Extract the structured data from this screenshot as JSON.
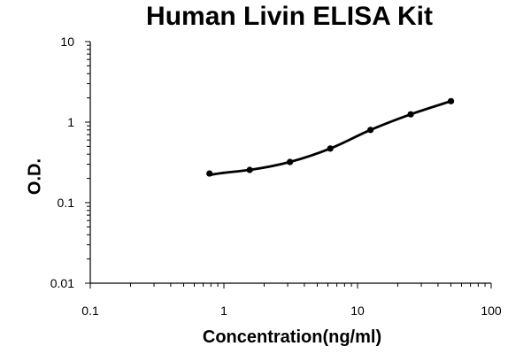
{
  "chart_data": {
    "type": "line",
    "title": "Human Livin ELISA Kit",
    "xlabel": "Concentration(ng/ml)",
    "ylabel": "O.D.",
    "x_scale": "log",
    "y_scale": "log",
    "xlim": [
      0.1,
      100
    ],
    "ylim": [
      0.01,
      10
    ],
    "x_ticks": [
      "0.1",
      "1",
      "10",
      "100"
    ],
    "y_ticks": [
      "0.01",
      "0.1",
      "1",
      "10"
    ],
    "grid": false,
    "series": [
      {
        "x": [
          0.78,
          1.56,
          3.12,
          6.25,
          12.5,
          25,
          50
        ],
        "y": [
          0.23,
          0.255,
          0.32,
          0.47,
          0.8,
          1.25,
          1.82
        ]
      }
    ],
    "line_color": "#000000"
  }
}
